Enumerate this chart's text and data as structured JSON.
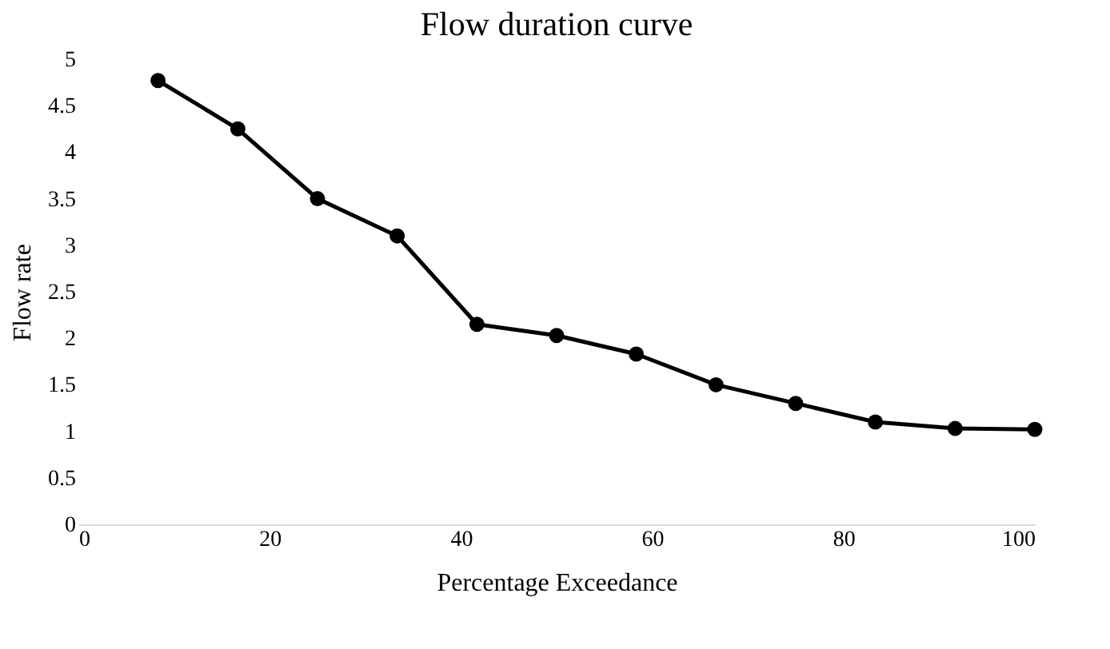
{
  "chart_data": {
    "type": "line",
    "title": "Flow duration curve",
    "xlabel": "Percentage Exceedance",
    "ylabel": "Flow rate",
    "x": [
      8.33,
      16.67,
      25,
      33.33,
      41.67,
      50,
      58.33,
      66.67,
      75,
      83.33,
      91.67,
      100
    ],
    "series": [
      {
        "color": "#000000",
        "values": [
          4.77,
          4.25,
          3.5,
          3.1,
          2.15,
          2.03,
          1.83,
          1.5,
          1.3,
          1.1,
          1.03,
          1.02
        ]
      }
    ],
    "xlim": [
      0,
      100
    ],
    "xticks": [
      0,
      20,
      40,
      60,
      80,
      100
    ],
    "ylim": [
      0,
      5
    ],
    "yticks": [
      0,
      0.5,
      1,
      1.5,
      2,
      2.5,
      3,
      3.5,
      4,
      4.5,
      5
    ],
    "grid": false,
    "legend": false,
    "marker": "circle",
    "line_style": "solid"
  }
}
